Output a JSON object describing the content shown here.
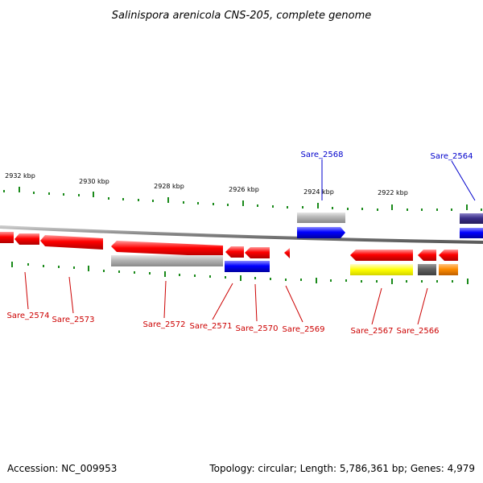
{
  "title": "Salinispora arenicola CNS-205, complete genome",
  "footer": {
    "accession": "Accession: NC_009953",
    "summary": "Topology: circular; Length: 5,786,361 bp; Genes: 4,979"
  },
  "ruler": [
    "2932 kbp",
    "2930 kbp",
    "2928 kbp",
    "2926 kbp",
    "2924 kbp",
    "2922 kbp"
  ],
  "colors": {
    "red_gene": "#ff0000",
    "blue_gene": "#0000ff",
    "gray_gene": "#b0b0b0",
    "yellow_gene": "#ffff00",
    "orange_gene": "#ff8c00",
    "purple_gene": "#3b2f8a",
    "backbone": "#808080",
    "tick": "#1a8a1a",
    "label_red": "#cc0000",
    "label_blue": "#0000cc"
  },
  "genes": {
    "sare_2574": "Sare_2574",
    "sare_2573": "Sare_2573",
    "sare_2572": "Sare_2572",
    "sare_2571": "Sare_2571",
    "sare_2570": "Sare_2570",
    "sare_2569": "Sare_2569",
    "sare_2568": "Sare_2568",
    "sare_2567": "Sare_2567",
    "sare_2566": "Sare_2566",
    "sare_2564": "Sare_2564"
  }
}
